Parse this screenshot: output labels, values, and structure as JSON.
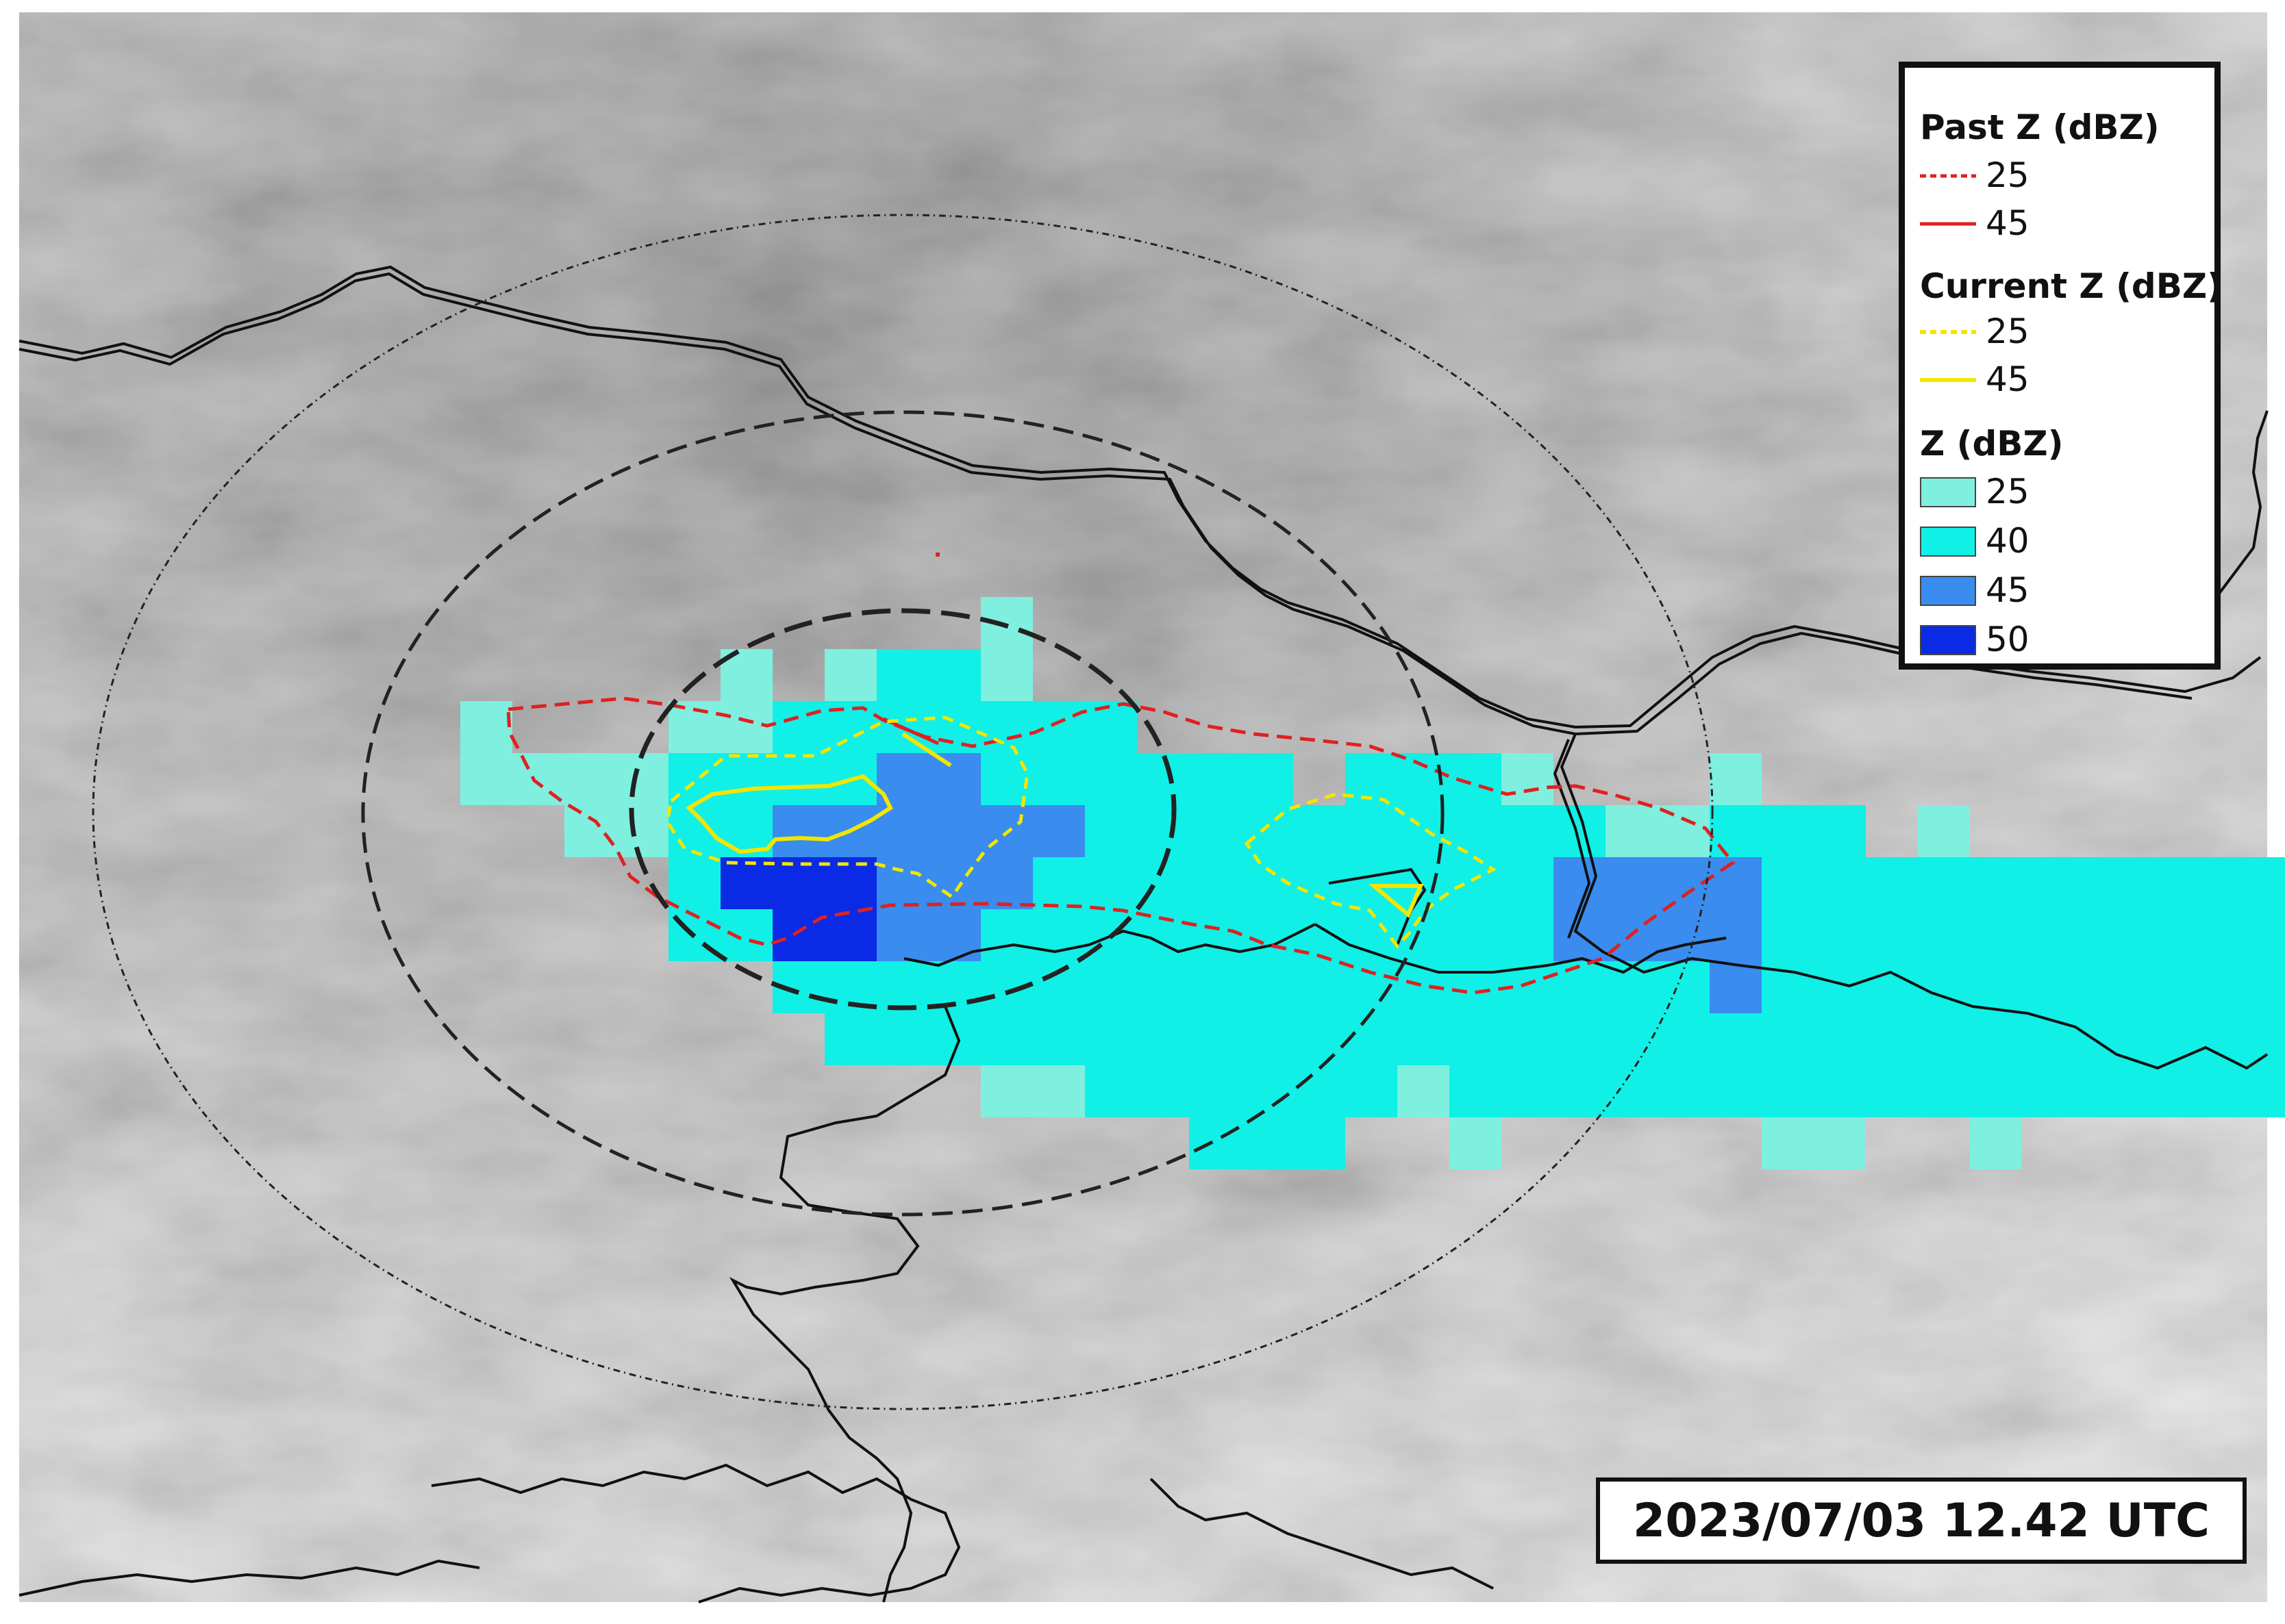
{
  "legend": {
    "past": {
      "title": "Past Z (dBZ)",
      "color": "#e02020",
      "items": [
        {
          "label": "25",
          "style": "dashed"
        },
        {
          "label": "45",
          "style": "solid"
        }
      ]
    },
    "current": {
      "title": "Current Z (dBZ)",
      "color": "#f2e600",
      "items": [
        {
          "label": "25",
          "style": "dashed"
        },
        {
          "label": "45",
          "style": "solid"
        }
      ]
    },
    "z": {
      "title": "Z (dBZ)",
      "items": [
        {
          "label": "25",
          "color": "#7fefdf"
        },
        {
          "label": "40",
          "color": "#10f0e6"
        },
        {
          "label": "45",
          "color": "#3a8cee"
        },
        {
          "label": "50",
          "color": "#0a2ae6"
        }
      ]
    }
  },
  "timestamp": "2023/07/03 12.42 UTC",
  "colors": {
    "border_line": "#111111",
    "range_ring": "#222222"
  }
}
